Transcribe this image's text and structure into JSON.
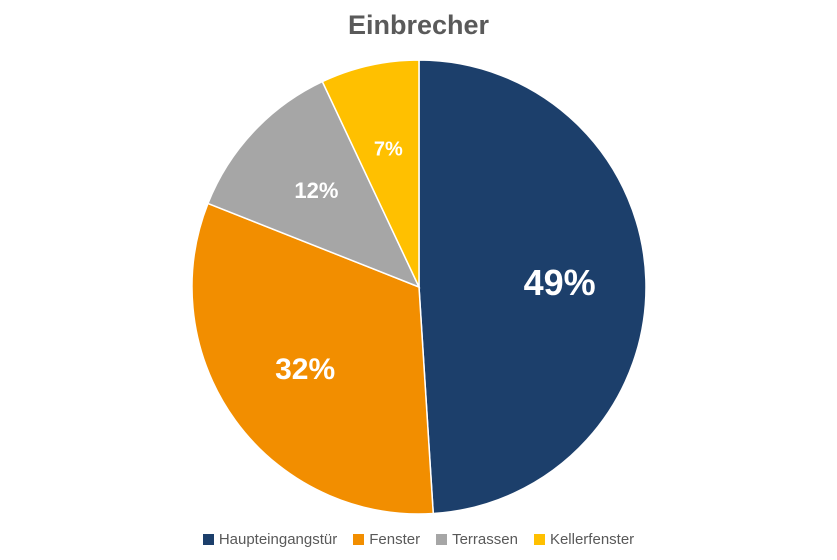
{
  "chart_data": {
    "type": "pie",
    "title": "Einbrecher",
    "categories": [
      "Haupteingangstür",
      "Fenster",
      "Terrassen",
      "Kellerfenster"
    ],
    "values": [
      49,
      32,
      12,
      7
    ],
    "labels": [
      "49%",
      "32%",
      "12%",
      "7%"
    ],
    "colors": [
      "#1c3f6b",
      "#f28e00",
      "#a6a6a6",
      "#ffc000"
    ],
    "start_angle_deg": 0,
    "direction": "clockwise",
    "legend_position": "bottom"
  }
}
